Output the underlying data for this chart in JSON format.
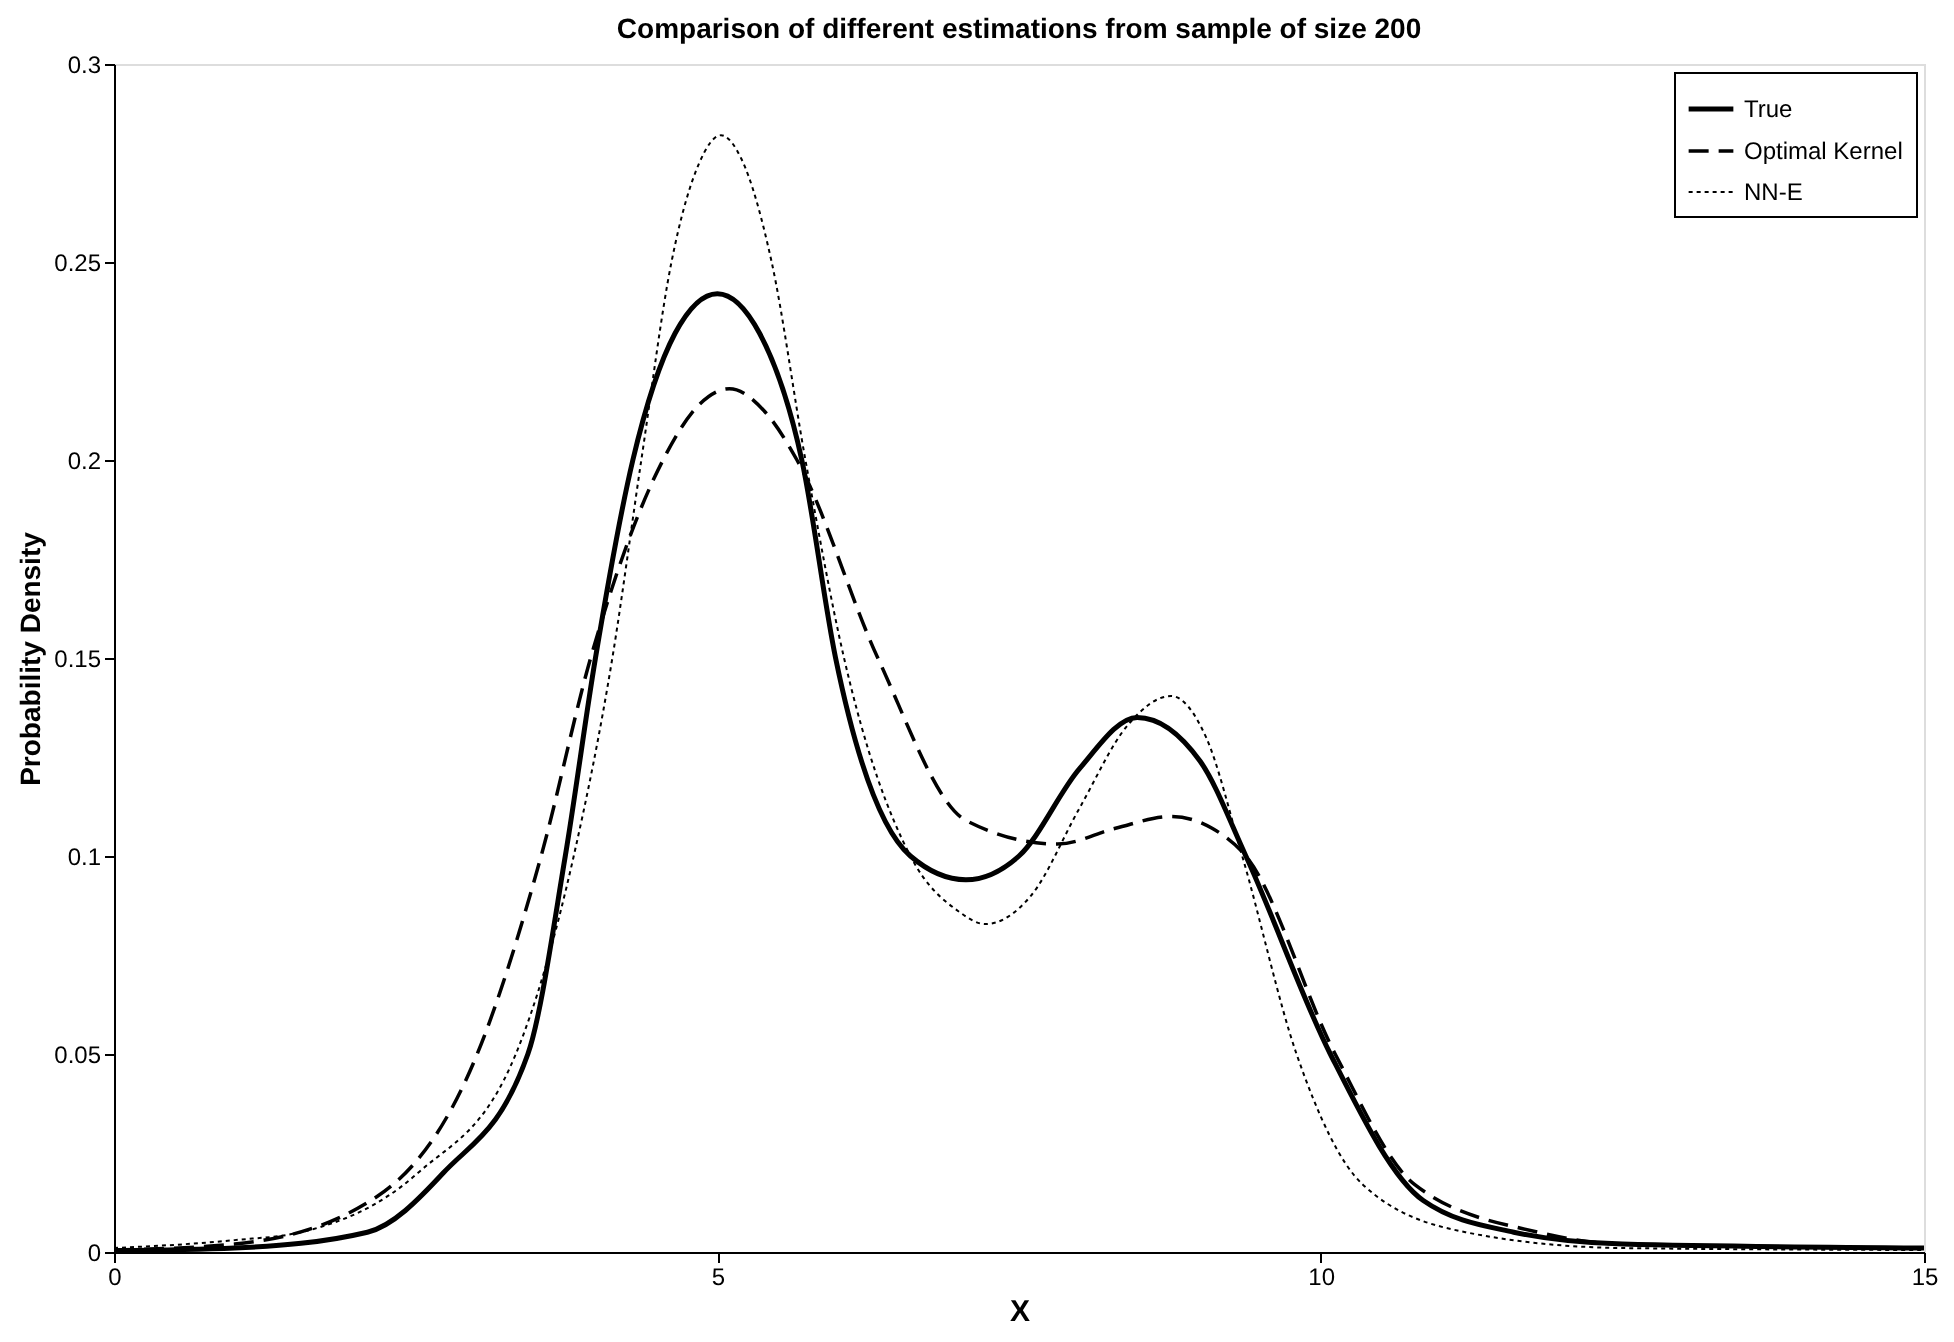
{
  "chart_data": {
    "type": "line",
    "title": "Comparison of different estimations from sample of size 200",
    "xlabel": "X",
    "ylabel": "Probability Density",
    "xlim": [
      0,
      15
    ],
    "ylim": [
      0,
      0.3
    ],
    "xticks": [
      0,
      5,
      10,
      15
    ],
    "yticks": [
      0,
      0.05,
      0.1,
      0.15,
      0.2,
      0.25,
      0.3
    ],
    "grid": false,
    "legend": "top right",
    "marker": "none",
    "series": [
      {
        "name": "True",
        "color": "#000000",
        "line_style": "solid",
        "x": [
          0,
          1,
          2.1,
          2.73,
          3.43,
          3.74,
          3.99,
          4.3,
          4.65,
          5.0,
          5.35,
          5.7,
          5.98,
          6.6,
          7.06,
          7.5,
          8.0,
          8.48,
          9.0,
          9.38,
          10.08,
          10.85,
          11.6,
          12.5,
          15
        ],
        "values": [
          0.0003,
          0.001,
          0.005,
          0.02,
          0.05,
          0.1,
          0.15,
          0.2,
          0.232,
          0.242,
          0.232,
          0.2,
          0.15,
          0.1,
          0.094,
          0.1,
          0.122,
          0.135,
          0.124,
          0.1,
          0.05,
          0.013,
          0.005,
          0.002,
          0.001
        ]
      },
      {
        "name": "Optimal Kernel",
        "color": "#000000",
        "line_style": "dashed",
        "x": [
          0,
          1,
          2.18,
          3.01,
          3.54,
          3.95,
          4.55,
          4.85,
          5.1,
          5.4,
          5.66,
          6.33,
          7.06,
          7.82,
          8.3,
          8.76,
          9.1,
          9.38,
          10.12,
          10.78,
          11.8,
          12.5,
          15
        ],
        "values": [
          0.0005,
          0.002,
          0.014,
          0.05,
          0.1,
          0.15,
          0.2,
          0.214,
          0.218,
          0.212,
          0.2,
          0.15,
          0.109,
          0.103,
          0.107,
          0.11,
          0.107,
          0.1,
          0.05,
          0.017,
          0.005,
          0.002,
          0.001
        ]
      },
      {
        "name": "NN-E",
        "color": "#000000",
        "line_style": "dotted",
        "x": [
          0,
          1,
          1.55,
          2.52,
          3.33,
          3.81,
          4.13,
          4.37,
          4.62,
          4.85,
          5.03,
          5.2,
          5.45,
          5.73,
          6.05,
          6.6,
          7.0,
          7.22,
          7.6,
          8.0,
          8.4,
          8.76,
          9.05,
          9.35,
          9.8,
          10.35,
          11.2,
          12.5,
          15
        ],
        "values": [
          0.001,
          0.003,
          0.005,
          0.02,
          0.05,
          0.1,
          0.15,
          0.2,
          0.25,
          0.275,
          0.282,
          0.276,
          0.25,
          0.2,
          0.15,
          0.1,
          0.086,
          0.0828,
          0.09,
          0.112,
          0.133,
          0.1404,
          0.13,
          0.1,
          0.05,
          0.017,
          0.005,
          0.001,
          0.0005
        ]
      }
    ]
  }
}
